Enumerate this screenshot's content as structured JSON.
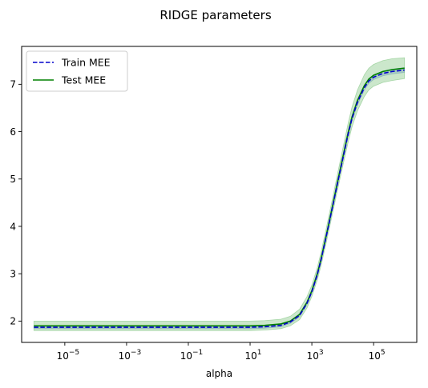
{
  "chart_data": {
    "type": "line",
    "title": "RIDGE parameters",
    "xlabel": "alpha",
    "ylabel": "",
    "x_scale": "log",
    "xlim": [
      4e-07,
      2500000.0
    ],
    "ylim": [
      1.55,
      7.8
    ],
    "x_ticks": [
      1e-05,
      0.001,
      0.1,
      10.0,
      1000.0,
      100000.0
    ],
    "x_tick_base": "10",
    "x_tick_exponents": [
      "−5",
      "−3",
      "−1",
      "1",
      "3",
      "5"
    ],
    "y_ticks": [
      "2",
      "3",
      "4",
      "5",
      "6",
      "7"
    ],
    "y_tick_values": [
      2,
      3,
      4,
      5,
      6,
      7
    ],
    "grid": false,
    "legend": "top-left",
    "x": [
      1e-06,
      1e-05,
      0.0001,
      0.001,
      0.01,
      0.1,
      1,
      10,
      30,
      100,
      200,
      400,
      700,
      1000,
      1500,
      2000,
      3000,
      5000,
      7000,
      10000,
      15000,
      20000,
      30000,
      50000,
      70000,
      100000,
      200000,
      400000,
      1000000
    ],
    "series": [
      {
        "name": "Train MEE",
        "color": "#0000cc",
        "style": "dashed",
        "band_color": "#6a8fd8",
        "values": [
          1.87,
          1.87,
          1.87,
          1.87,
          1.87,
          1.87,
          1.87,
          1.87,
          1.88,
          1.91,
          1.98,
          2.12,
          2.38,
          2.62,
          2.98,
          3.3,
          3.82,
          4.5,
          4.95,
          5.42,
          5.95,
          6.28,
          6.62,
          6.93,
          7.07,
          7.15,
          7.23,
          7.27,
          7.3
        ],
        "band_low": [
          1.84,
          1.84,
          1.84,
          1.84,
          1.84,
          1.84,
          1.84,
          1.84,
          1.85,
          1.88,
          1.95,
          2.09,
          2.35,
          2.59,
          2.94,
          3.26,
          3.78,
          4.45,
          4.9,
          5.37,
          5.9,
          6.23,
          6.57,
          6.88,
          7.02,
          7.1,
          7.18,
          7.22,
          7.25
        ],
        "band_high": [
          1.9,
          1.9,
          1.9,
          1.9,
          1.9,
          1.9,
          1.9,
          1.9,
          1.91,
          1.94,
          2.01,
          2.15,
          2.41,
          2.65,
          3.02,
          3.34,
          3.86,
          4.55,
          5.0,
          5.47,
          6.0,
          6.33,
          6.67,
          6.98,
          7.12,
          7.2,
          7.28,
          7.32,
          7.35
        ]
      },
      {
        "name": "Test MEE",
        "color": "#008000",
        "style": "solid",
        "band_color": "#7ec47e",
        "values": [
          1.9,
          1.9,
          1.9,
          1.9,
          1.9,
          1.9,
          1.9,
          1.9,
          1.91,
          1.94,
          2.0,
          2.14,
          2.4,
          2.64,
          3.0,
          3.32,
          3.84,
          4.52,
          4.98,
          5.45,
          5.98,
          6.31,
          6.66,
          6.97,
          7.11,
          7.19,
          7.27,
          7.31,
          7.34
        ],
        "band_low": [
          1.8,
          1.8,
          1.8,
          1.8,
          1.8,
          1.8,
          1.8,
          1.8,
          1.81,
          1.84,
          1.9,
          2.03,
          2.28,
          2.52,
          2.87,
          3.18,
          3.69,
          4.36,
          4.81,
          5.27,
          5.78,
          6.1,
          6.44,
          6.74,
          6.88,
          6.96,
          7.04,
          7.08,
          7.12
        ],
        "band_high": [
          2.0,
          2.0,
          2.0,
          2.0,
          2.0,
          2.0,
          2.0,
          2.0,
          2.01,
          2.04,
          2.1,
          2.25,
          2.52,
          2.76,
          3.13,
          3.46,
          3.99,
          4.68,
          5.15,
          5.63,
          6.18,
          6.52,
          6.88,
          7.2,
          7.34,
          7.42,
          7.5,
          7.54,
          7.56
        ]
      }
    ]
  }
}
